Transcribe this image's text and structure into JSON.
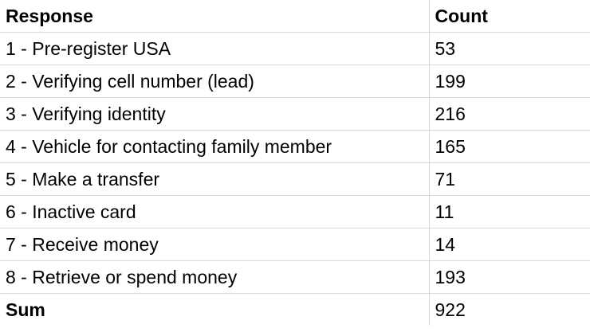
{
  "table": {
    "headers": {
      "response": "Response",
      "count": "Count"
    },
    "rows": [
      {
        "response": "1 - Pre-register USA",
        "count": "53"
      },
      {
        "response": "2 - Verifying cell number (lead)",
        "count": "199"
      },
      {
        "response": "3 - Verifying identity",
        "count": "216"
      },
      {
        "response": "4 - Vehicle for contacting family member",
        "count": "165"
      },
      {
        "response": "5 - Make a transfer",
        "count": "71"
      },
      {
        "response": "6 - Inactive card",
        "count": "11"
      },
      {
        "response": "7 - Receive money",
        "count": "14"
      },
      {
        "response": "8 - Retrieve or spend money",
        "count": "193"
      }
    ],
    "total": {
      "label": "Sum",
      "count": "922"
    }
  }
}
